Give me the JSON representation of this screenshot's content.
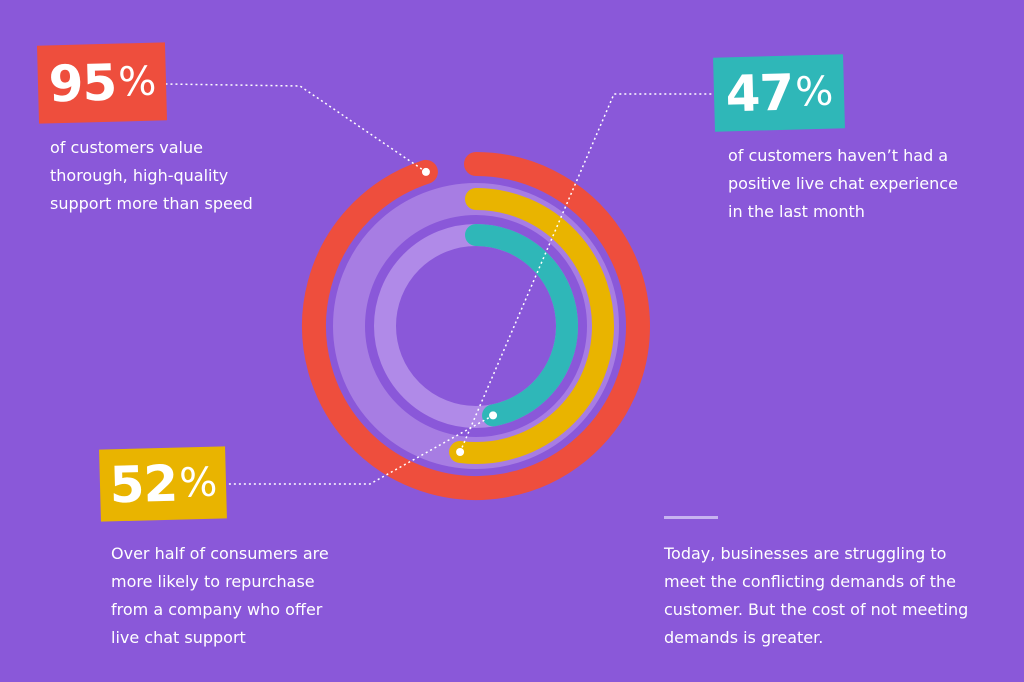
{
  "chart_data": {
    "type": "radial-bar",
    "max": 100,
    "series": [
      {
        "name": "",
        "value": 95,
        "color": "#ee4e3d"
      },
      {
        "name": "",
        "value": 52,
        "color": "#e9b400"
      },
      {
        "name": "",
        "value": 47,
        "color": "#2fb7b8"
      }
    ],
    "track_colors": [
      "#a77de3",
      "#b08ae8"
    ],
    "background": "#8a58d9"
  },
  "stats": {
    "s95": {
      "value": "95",
      "unit": "%",
      "color": "#ee4e3d",
      "lines": [
        "of customers value",
        "thorough, high-quality",
        "support more than speed"
      ]
    },
    "s47": {
      "value": "47",
      "unit": "%",
      "color": "#2fb7b8",
      "lines": [
        "of customers haven’t had a",
        "positive live chat experience",
        "in the last month"
      ]
    },
    "s52": {
      "value": "52",
      "unit": "%",
      "color": "#e9b400",
      "lines": [
        "Over half of consumers are",
        "more likely to repurchase",
        "from a company who offer",
        "live chat support"
      ]
    }
  },
  "note": {
    "lines": [
      "Today, businesses are struggling to",
      "meet the conflicting demands of the",
      "customer. But the cost of not meeting",
      "demands is greater."
    ]
  }
}
